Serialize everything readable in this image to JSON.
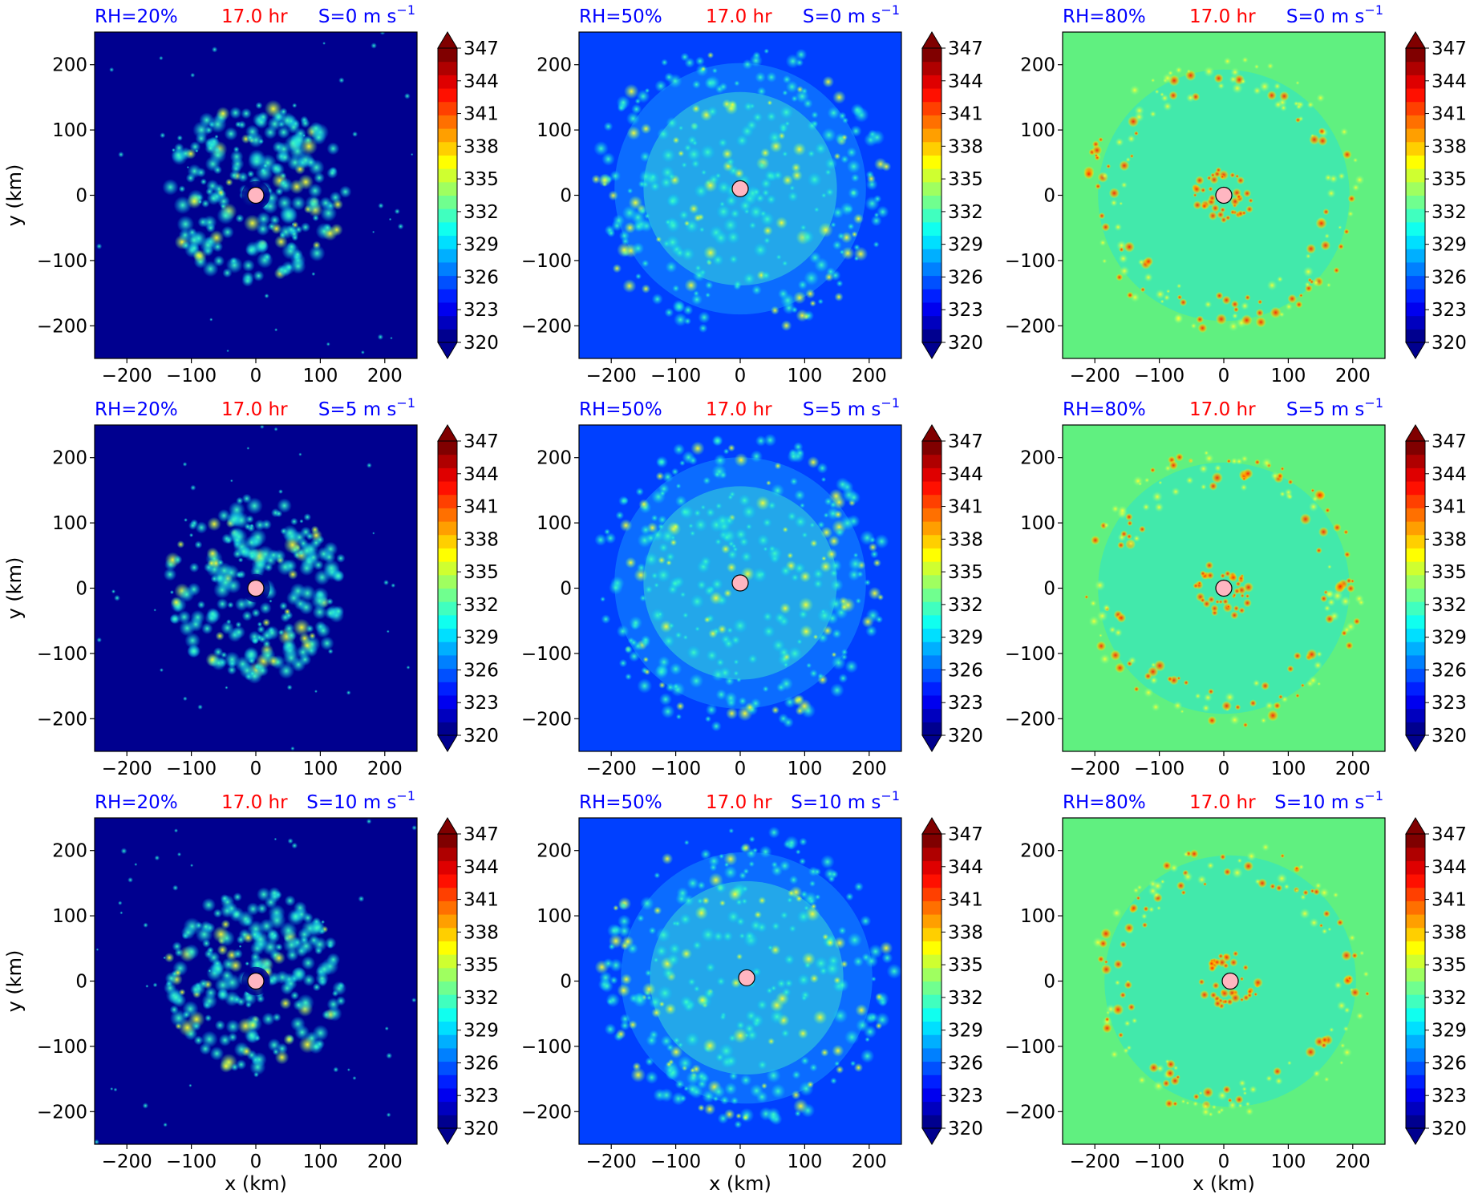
{
  "chart_data": [
    {
      "type": "heatmap",
      "panel": "r0c0",
      "title_left": "RH=20%",
      "title_time": "17.0 hr",
      "title_shear": "S=0 m s",
      "title_shear_exp": "−1",
      "ylabel": "y (km)",
      "xlabel": "",
      "field_color": "#00008f",
      "center_km": [
        0,
        0
      ]
    },
    {
      "type": "heatmap",
      "panel": "r0c1",
      "title_left": "RH=50%",
      "title_time": "17.0 hr",
      "title_shear": "S=0 m s",
      "title_shear_exp": "−1",
      "ylabel": "",
      "xlabel": "",
      "field_color": "#0040ff",
      "center_km": [
        0,
        10
      ]
    },
    {
      "type": "heatmap",
      "panel": "r0c2",
      "title_left": "RH=80%",
      "title_time": "17.0 hr",
      "title_shear": "S=0 m s",
      "title_shear_exp": "−1",
      "ylabel": "",
      "xlabel": "",
      "field_color": "#60f080",
      "center_km": [
        0,
        0
      ]
    },
    {
      "type": "heatmap",
      "panel": "r1c0",
      "title_left": "RH=20%",
      "title_time": "17.0 hr",
      "title_shear": "S=5 m s",
      "title_shear_exp": "−1",
      "ylabel": "y (km)",
      "xlabel": "",
      "field_color": "#00008f",
      "center_km": [
        0,
        0
      ]
    },
    {
      "type": "heatmap",
      "panel": "r1c1",
      "title_left": "RH=50%",
      "title_time": "17.0 hr",
      "title_shear": "S=5 m s",
      "title_shear_exp": "−1",
      "ylabel": "",
      "xlabel": "",
      "field_color": "#0040ff",
      "center_km": [
        0,
        8
      ]
    },
    {
      "type": "heatmap",
      "panel": "r1c2",
      "title_left": "RH=80%",
      "title_time": "17.0 hr",
      "title_shear": "S=5 m s",
      "title_shear_exp": "−1",
      "ylabel": "",
      "xlabel": "",
      "field_color": "#60f080",
      "center_km": [
        0,
        0
      ]
    },
    {
      "type": "heatmap",
      "panel": "r2c0",
      "title_left": "RH=20%",
      "title_time": "17.0 hr",
      "title_shear": "S=10 m s",
      "title_shear_exp": "−1",
      "ylabel": "y (km)",
      "xlabel": "x (km)",
      "field_color": "#00008f",
      "center_km": [
        0,
        0
      ]
    },
    {
      "type": "heatmap",
      "panel": "r2c1",
      "title_left": "RH=50%",
      "title_time": "17.0 hr",
      "title_shear": "S=10 m s",
      "title_shear_exp": "−1",
      "ylabel": "",
      "xlabel": "x (km)",
      "field_color": "#0040ff",
      "center_km": [
        10,
        5
      ]
    },
    {
      "type": "heatmap",
      "panel": "r2c2",
      "title_left": "RH=80%",
      "title_time": "17.0 hr",
      "title_shear": "S=10 m s",
      "title_shear_exp": "−1",
      "ylabel": "",
      "xlabel": "x (km)",
      "field_color": "#60f080",
      "center_km": [
        10,
        0
      ]
    }
  ],
  "axis_ticks": {
    "x": [
      "−200",
      "−100",
      "0",
      "100",
      "200"
    ],
    "y": [
      "200",
      "100",
      "0",
      "−100",
      "−200"
    ]
  },
  "colorbar": {
    "tick_labels": [
      "347",
      "344",
      "341",
      "338",
      "335",
      "332",
      "329",
      "326",
      "323",
      "320"
    ],
    "colors": [
      "#00008f",
      "#0000bf",
      "#0000ef",
      "#0020ff",
      "#0050ff",
      "#0080ff",
      "#00afff",
      "#00dfff",
      "#10ffef",
      "#40ffbf",
      "#70ff8f",
      "#9fff60",
      "#cfff30",
      "#ffff00",
      "#ffcf00",
      "#ff9f00",
      "#ff7000",
      "#ff4000",
      "#ff1000",
      "#df0000",
      "#af0000",
      "#800000"
    ]
  },
  "colors": {
    "title_blue": "#0000ff",
    "title_red": "#ff0000",
    "center_marker": "#ffb6c1",
    "low_field": "#00008f",
    "mid_field": "#0040ff",
    "high_field": "#60f080"
  }
}
